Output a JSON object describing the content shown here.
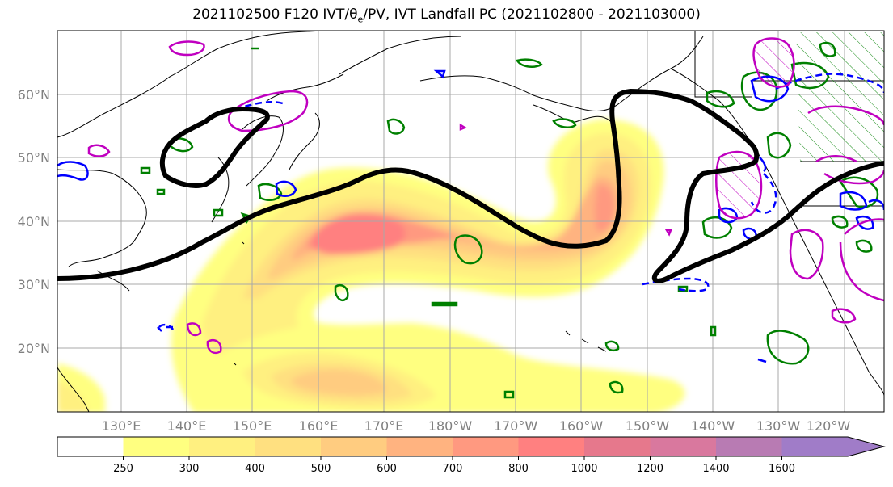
{
  "title_prefix": "2021102500 F120 IVT/θ",
  "title_sub": "e",
  "title_suffix": "/PV, IVT Landfall PC (2021102800 - 2021103000)",
  "lat_labels": [
    "60°N",
    "50°N",
    "40°N",
    "30°N",
    "20°N"
  ],
  "lon_labels": [
    "130°E",
    "140°E",
    "150°E",
    "160°E",
    "170°E",
    "180°W",
    "170°W",
    "160°W",
    "150°W",
    "140°W",
    "130°W",
    "120°W"
  ],
  "colorbar": {
    "ticks": [
      "250",
      "300",
      "400",
      "500",
      "600",
      "700",
      "800",
      "1000",
      "1200",
      "1400",
      "1600"
    ],
    "colors": [
      "#ffff80",
      "#fff080",
      "#ffe080",
      "#ffcc80",
      "#ffb380",
      "#ff9980",
      "#ff8080",
      "#e6788c",
      "#d9789e",
      "#b87bb3",
      "#a07cc8"
    ],
    "extend": "max"
  },
  "legend_colors": {
    "contour_black": "#000000",
    "contour_magenta": "#c000c0",
    "contour_green": "#008000",
    "contour_blue": "#0000ff"
  }
}
